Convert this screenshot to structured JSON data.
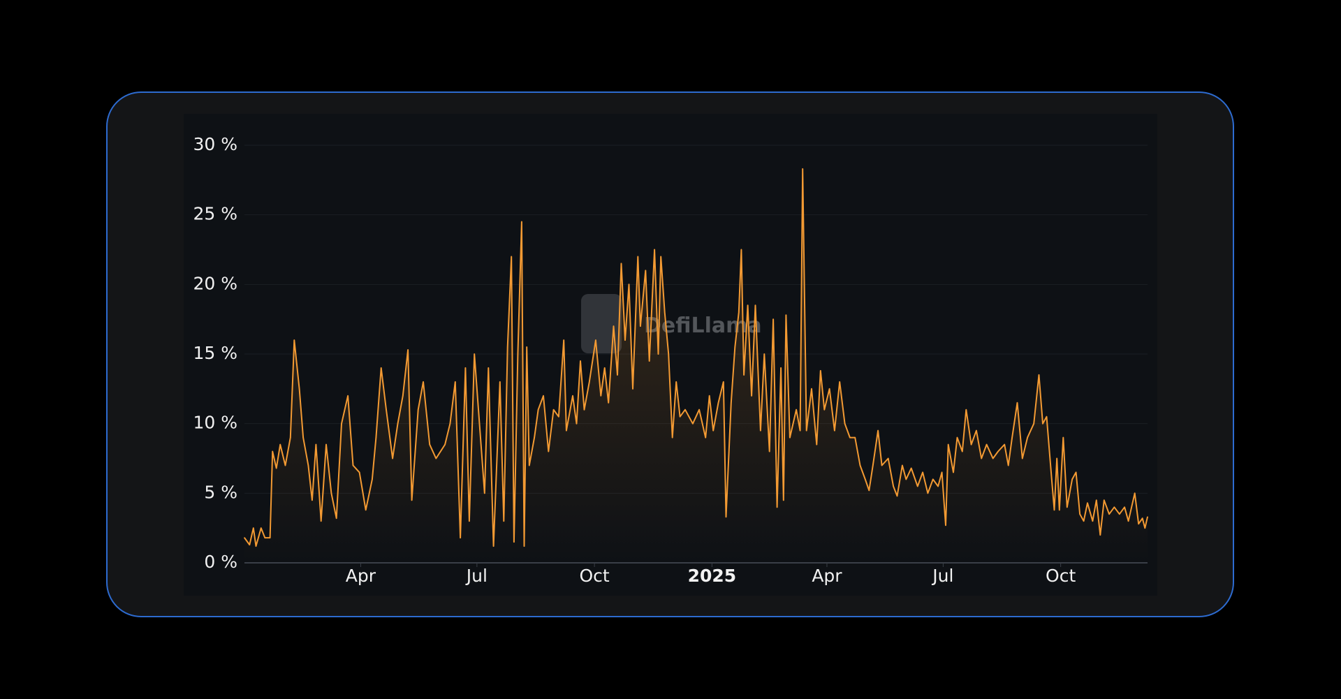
{
  "watermark": "DefiLlama",
  "colors": {
    "line": "#f39a33",
    "fill_top": "#f39a33",
    "grid": "#1b1f25",
    "axis": "#3a3f47",
    "card_border": "#2d6bd0"
  },
  "chart_data": {
    "type": "area",
    "title": "",
    "xlabel": "",
    "ylabel": "",
    "xlim": [
      "2024-01-01",
      "2025-12-08"
    ],
    "ylim": [
      0,
      30
    ],
    "grid": true,
    "legend": "none",
    "y_ticks": [
      {
        "value": 0,
        "label": "0 %"
      },
      {
        "value": 5,
        "label": "5 %"
      },
      {
        "value": 10,
        "label": "10 %"
      },
      {
        "value": 15,
        "label": "15 %"
      },
      {
        "value": 20,
        "label": "20 %"
      },
      {
        "value": 25,
        "label": "25 %"
      },
      {
        "value": 30,
        "label": "30 %"
      }
    ],
    "x_ticks": [
      {
        "date": "2024-04-01",
        "label": "Apr",
        "bold": false
      },
      {
        "date": "2024-07-01",
        "label": "Jul",
        "bold": false
      },
      {
        "date": "2024-10-01",
        "label": "Oct",
        "bold": false
      },
      {
        "date": "2025-01-01",
        "label": "2025",
        "bold": true
      },
      {
        "date": "2025-04-01",
        "label": "Apr",
        "bold": false
      },
      {
        "date": "2025-07-01",
        "label": "Jul",
        "bold": false
      },
      {
        "date": "2025-10-01",
        "label": "Oct",
        "bold": false
      }
    ],
    "points": [
      [
        "2024-01-01",
        1.8
      ],
      [
        "2024-01-05",
        1.3
      ],
      [
        "2024-01-08",
        2.5
      ],
      [
        "2024-01-10",
        1.2
      ],
      [
        "2024-01-14",
        2.5
      ],
      [
        "2024-01-17",
        1.8
      ],
      [
        "2024-01-21",
        1.8
      ],
      [
        "2024-01-23",
        8
      ],
      [
        "2024-01-26",
        6.8
      ],
      [
        "2024-01-29",
        8.5
      ],
      [
        "2024-02-02",
        7
      ],
      [
        "2024-02-06",
        9
      ],
      [
        "2024-02-09",
        16
      ],
      [
        "2024-02-13",
        12.5
      ],
      [
        "2024-02-16",
        9
      ],
      [
        "2024-02-20",
        7
      ],
      [
        "2024-02-23",
        4.5
      ],
      [
        "2024-02-26",
        8.5
      ],
      [
        "2024-03-01",
        3
      ],
      [
        "2024-03-05",
        8.5
      ],
      [
        "2024-03-09",
        5
      ],
      [
        "2024-03-13",
        3.2
      ],
      [
        "2024-03-17",
        10
      ],
      [
        "2024-03-22",
        12
      ],
      [
        "2024-03-26",
        7
      ],
      [
        "2024-03-31",
        6.5
      ],
      [
        "2024-04-05",
        3.8
      ],
      [
        "2024-04-10",
        6
      ],
      [
        "2024-04-13",
        9
      ],
      [
        "2024-04-17",
        14
      ],
      [
        "2024-04-21",
        11
      ],
      [
        "2024-04-26",
        7.5
      ],
      [
        "2024-04-30",
        10
      ],
      [
        "2024-05-04",
        12
      ],
      [
        "2024-05-08",
        15.3
      ],
      [
        "2024-05-11",
        4.5
      ],
      [
        "2024-05-16",
        11
      ],
      [
        "2024-05-20",
        13
      ],
      [
        "2024-05-25",
        8.5
      ],
      [
        "2024-05-30",
        7.5
      ],
      [
        "2024-06-06",
        8.5
      ],
      [
        "2024-06-10",
        10
      ],
      [
        "2024-06-14",
        13
      ],
      [
        "2024-06-18",
        1.8
      ],
      [
        "2024-06-22",
        14
      ],
      [
        "2024-06-25",
        3
      ],
      [
        "2024-06-29",
        15
      ],
      [
        "2024-07-03",
        10
      ],
      [
        "2024-07-07",
        5
      ],
      [
        "2024-07-10",
        14
      ],
      [
        "2024-07-14",
        1.2
      ],
      [
        "2024-07-19",
        13
      ],
      [
        "2024-07-22",
        3
      ],
      [
        "2024-07-25",
        15.5
      ],
      [
        "2024-07-28",
        22
      ],
      [
        "2024-07-30",
        1.5
      ],
      [
        "2024-08-02",
        15
      ],
      [
        "2024-08-05",
        24.5
      ],
      [
        "2024-08-07",
        1.2
      ],
      [
        "2024-08-09",
        15.5
      ],
      [
        "2024-08-11",
        7
      ],
      [
        "2024-08-15",
        9
      ],
      [
        "2024-08-18",
        11
      ],
      [
        "2024-08-22",
        12
      ],
      [
        "2024-08-26",
        8
      ],
      [
        "2024-08-30",
        11
      ],
      [
        "2024-09-03",
        10.5
      ],
      [
        "2024-09-07",
        16
      ],
      [
        "2024-09-09",
        9.5
      ],
      [
        "2024-09-14",
        12
      ],
      [
        "2024-09-17",
        10
      ],
      [
        "2024-09-20",
        14.5
      ],
      [
        "2024-09-23",
        11
      ],
      [
        "2024-09-27",
        13
      ],
      [
        "2024-10-02",
        16
      ],
      [
        "2024-10-06",
        12
      ],
      [
        "2024-10-09",
        14
      ],
      [
        "2024-10-12",
        11.5
      ],
      [
        "2024-10-16",
        17
      ],
      [
        "2024-10-19",
        13.5
      ],
      [
        "2024-10-22",
        21.5
      ],
      [
        "2024-10-25",
        16
      ],
      [
        "2024-10-28",
        20
      ],
      [
        "2024-10-31",
        12.5
      ],
      [
        "2024-11-04",
        22
      ],
      [
        "2024-11-06",
        17
      ],
      [
        "2024-11-10",
        21
      ],
      [
        "2024-11-13",
        14.5
      ],
      [
        "2024-11-17",
        22.5
      ],
      [
        "2024-11-20",
        15
      ],
      [
        "2024-11-22",
        22
      ],
      [
        "2024-11-25",
        18
      ],
      [
        "2024-11-28",
        15
      ],
      [
        "2024-12-01",
        9
      ],
      [
        "2024-12-04",
        13
      ],
      [
        "2024-12-07",
        10.5
      ],
      [
        "2024-12-11",
        11
      ],
      [
        "2024-12-17",
        10
      ],
      [
        "2024-12-22",
        11
      ],
      [
        "2024-12-27",
        9
      ],
      [
        "2024-12-30",
        12
      ],
      [
        "2025-01-02",
        9.5
      ],
      [
        "2025-01-06",
        11.5
      ],
      [
        "2025-01-10",
        13
      ],
      [
        "2025-01-12",
        3.3
      ],
      [
        "2025-01-16",
        11.5
      ],
      [
        "2025-01-19",
        15.5
      ],
      [
        "2025-01-22",
        18
      ],
      [
        "2025-01-24",
        22.5
      ],
      [
        "2025-01-26",
        13.5
      ],
      [
        "2025-01-29",
        18.5
      ],
      [
        "2025-02-01",
        12
      ],
      [
        "2025-02-04",
        18.5
      ],
      [
        "2025-02-08",
        9.5
      ],
      [
        "2025-02-11",
        15
      ],
      [
        "2025-02-15",
        8
      ],
      [
        "2025-02-18",
        17.5
      ],
      [
        "2025-02-21",
        4
      ],
      [
        "2025-02-24",
        14
      ],
      [
        "2025-02-26",
        4.5
      ],
      [
        "2025-02-28",
        17.8
      ],
      [
        "2025-03-03",
        9
      ],
      [
        "2025-03-08",
        11
      ],
      [
        "2025-03-11",
        9.5
      ],
      [
        "2025-03-13",
        28.3
      ],
      [
        "2025-03-16",
        9.5
      ],
      [
        "2025-03-20",
        12.5
      ],
      [
        "2025-03-24",
        8.5
      ],
      [
        "2025-03-27",
        13.8
      ],
      [
        "2025-03-30",
        11
      ],
      [
        "2025-04-03",
        12.5
      ],
      [
        "2025-04-07",
        9.5
      ],
      [
        "2025-04-11",
        13
      ],
      [
        "2025-04-15",
        10
      ],
      [
        "2025-04-19",
        9
      ],
      [
        "2025-04-23",
        9
      ],
      [
        "2025-04-27",
        7
      ],
      [
        "2025-05-01",
        6
      ],
      [
        "2025-05-04",
        5.2
      ],
      [
        "2025-05-07",
        7
      ],
      [
        "2025-05-11",
        9.5
      ],
      [
        "2025-05-14",
        7
      ],
      [
        "2025-05-19",
        7.5
      ],
      [
        "2025-05-23",
        5.5
      ],
      [
        "2025-05-26",
        4.8
      ],
      [
        "2025-05-30",
        7
      ],
      [
        "2025-06-02",
        6
      ],
      [
        "2025-06-06",
        6.8
      ],
      [
        "2025-06-11",
        5.5
      ],
      [
        "2025-06-15",
        6.5
      ],
      [
        "2025-06-19",
        5
      ],
      [
        "2025-06-23",
        6
      ],
      [
        "2025-06-27",
        5.5
      ],
      [
        "2025-06-30",
        6.5
      ],
      [
        "2025-07-03",
        2.7
      ],
      [
        "2025-07-05",
        8.5
      ],
      [
        "2025-07-09",
        6.5
      ],
      [
        "2025-07-12",
        9
      ],
      [
        "2025-07-16",
        8
      ],
      [
        "2025-07-19",
        11
      ],
      [
        "2025-07-23",
        8.5
      ],
      [
        "2025-07-27",
        9.5
      ],
      [
        "2025-07-31",
        7.5
      ],
      [
        "2025-08-04",
        8.5
      ],
      [
        "2025-08-09",
        7.5
      ],
      [
        "2025-08-13",
        8
      ],
      [
        "2025-08-18",
        8.5
      ],
      [
        "2025-08-21",
        7
      ],
      [
        "2025-08-24",
        9
      ],
      [
        "2025-08-28",
        11.5
      ],
      [
        "2025-09-01",
        7.5
      ],
      [
        "2025-09-05",
        9
      ],
      [
        "2025-09-10",
        10
      ],
      [
        "2025-09-14",
        13.5
      ],
      [
        "2025-09-17",
        10
      ],
      [
        "2025-09-20",
        10.5
      ],
      [
        "2025-09-24",
        6
      ],
      [
        "2025-09-26",
        3.8
      ],
      [
        "2025-09-28",
        7.5
      ],
      [
        "2025-09-30",
        3.8
      ],
      [
        "2025-10-03",
        9
      ],
      [
        "2025-10-06",
        4
      ],
      [
        "2025-10-10",
        6
      ],
      [
        "2025-10-13",
        6.5
      ],
      [
        "2025-10-16",
        3.5
      ],
      [
        "2025-10-19",
        3
      ],
      [
        "2025-10-22",
        4.3
      ],
      [
        "2025-10-26",
        3
      ],
      [
        "2025-10-29",
        4.5
      ],
      [
        "2025-11-01",
        2
      ],
      [
        "2025-11-04",
        4.5
      ],
      [
        "2025-11-08",
        3.5
      ],
      [
        "2025-11-12",
        4
      ],
      [
        "2025-11-16",
        3.5
      ],
      [
        "2025-11-20",
        4
      ],
      [
        "2025-11-23",
        3
      ],
      [
        "2025-11-28",
        5
      ],
      [
        "2025-12-01",
        2.8
      ],
      [
        "2025-12-04",
        3.2
      ],
      [
        "2025-12-06",
        2.5
      ],
      [
        "2025-12-08",
        3.3
      ]
    ]
  }
}
